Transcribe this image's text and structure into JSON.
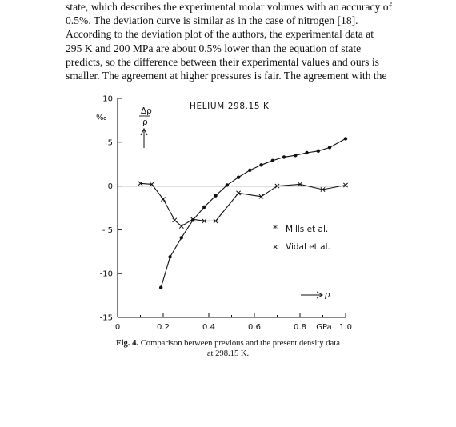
{
  "paragraph": {
    "lines": [
      "state, which describes the experimental molar volumes with an accuracy of",
      "0.5%. The deviation curve is similar as in the case of nitrogen [18].",
      "According to the deviation plot of the authors, the experimental data at",
      "295 K and 200 MPa are about 0.5% lower than the equation of state",
      "predicts, so the difference between their experimental values and ours is",
      "smaller. The agreement at higher pressures is fair. The agreement with the"
    ]
  },
  "caption": {
    "label": "Fig. 4.",
    "text_line1": "Comparison between previous and the present density data",
    "text_line2": "at 298.15 K."
  },
  "chart_data": {
    "type": "line",
    "title": "HELIUM   298.15 K",
    "ylabel_top": "Δρ",
    "ylabel_bottom": "ρ",
    "y_unit": "‰",
    "x_axis_arrow_label": "p",
    "x_ticks": [
      "0",
      "0.2",
      "0.4",
      "0.6",
      "0.8",
      "GPa",
      "1.0"
    ],
    "y_ticks": [
      "10",
      "5",
      "0",
      "- 5",
      "-10",
      "-15"
    ],
    "xlim": [
      0,
      1.0
    ],
    "ylim": [
      -15,
      10
    ],
    "series": [
      {
        "name": "Mills et al.",
        "marker": "*",
        "x": [
          0.19,
          0.23,
          0.28,
          0.33,
          0.38,
          0.43,
          0.48,
          0.53,
          0.58,
          0.63,
          0.68,
          0.73,
          0.78,
          0.83,
          0.88,
          0.93,
          1.0
        ],
        "y": [
          -11.6,
          -8.1,
          -5.9,
          -3.9,
          -2.4,
          -1.1,
          0.1,
          1.0,
          1.8,
          2.4,
          2.9,
          3.3,
          3.5,
          3.8,
          4.0,
          4.4,
          5.4
        ]
      },
      {
        "name": "Vidal et al.",
        "marker": "×",
        "x": [
          0.1,
          0.15,
          0.2,
          0.25,
          0.28,
          0.33,
          0.38,
          0.43,
          0.53,
          0.63,
          0.7,
          0.8,
          0.9,
          1.0
        ],
        "y": [
          0.3,
          0.2,
          -1.5,
          -3.9,
          -4.6,
          -3.8,
          -4.0,
          -4.0,
          -0.8,
          -1.2,
          0.0,
          0.2,
          -0.4,
          0.1
        ]
      }
    ]
  }
}
